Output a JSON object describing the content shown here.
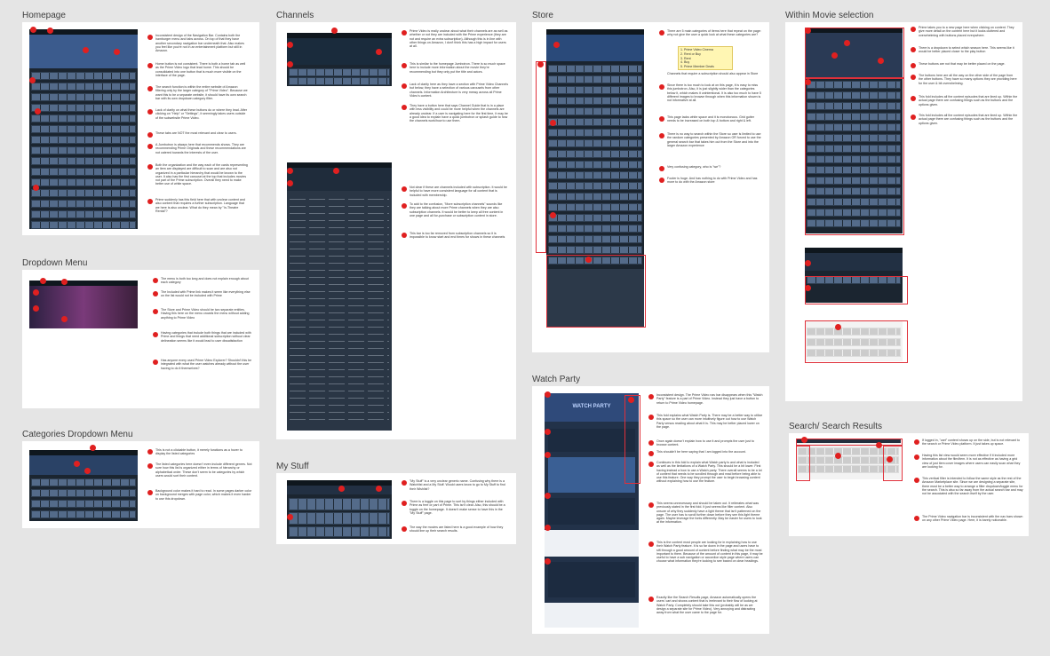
{
  "frames": {
    "homepage": {
      "title": "Homepage",
      "notes": [
        "Inconsistent design of the Navigation Bar. Contains both the hamburger menu and tabs across. On top of that they have another secondary navigation bar underneath that. Also makes you feel like you're not in an entertainment platform but still in Amazon.",
        "Home button is not consistent. There is both a home tab as well as the Prime Video logo that lead home. This should be consolidated into one button that is much more visible on the interface of the page.",
        "The search function is within the entire website of Amazon filtering only by the larger category of \"Prime Video\". Because we want this to be a separate website, it should have its own search bar with its own dropdown category filter.",
        "Lack of clarity on what these buttons do or where they lead. After clicking on \"Help\" or \"Settings\", it seemingly takes users outside of the subwebsite Prime Video.",
        "These tabs are NOT the most relevant and clear to users.",
        "A Jumbotron is always here that recommends shows. They are recommending Prime Originals and these recommendations are not catered towards the interests of the user.",
        "Both the organization and the way each of the cards representing an item are displayed are difficult to scan and are also not organized in a particular hierarchy that would be known to the user. It also has the first carousel at the top that includes movies not part of the Prime subscription. Overall they need to make better use of white space.",
        "Prime suddenly has this field here that with unclear content and also content that requires a further subscription. Language that we here is also unclear. What do they mean by \"In-Theatre Rental\"?"
      ]
    },
    "dropdown": {
      "title": "Dropdown Menu",
      "notes": [
        "The menu is both too long and does not explain enough about each category",
        "The Included with Prime link makes it seem like everything else on the list would not be included with Prime",
        "The Store and Prime Video should be two separate entities. Having this here on the menu crowds the menu without adding anything to Prime Video",
        "Having categories that include both things that are included with Prime and things that need additional subscription without clear delineation seems like it would lead to user dissatisfaction",
        "Has anyone every used Prime Video Explorer? Shouldn't this be integrated with what the user watches already without the user having to do it themselves?"
      ]
    },
    "categories": {
      "title": "Categories Dropdown Menu",
      "notes": [
        "This is not a clickable button, it merely functions as a hover to display the listed categories",
        "The listed categories here doesn't even include different genres. Not sure how this list is organized either in terms of hierarchy or alphabetical order. These don't seem to be categories by which users would sort their content.",
        "Background color makes it hard to read. In some pages darker color on background merges with page color, which makes it even harder to use this dropdown."
      ]
    },
    "channels": {
      "title": "Channels",
      "notes": [
        "Prime Video is really unclear about what their channels are as well as whether or not they are included with the Prime experience (they are not and require an extra subscription). Although this is in line with other things on Amazon, I don't think this has a high impact for users at all.",
        "This is similar to the homepage Jumbotron. There is so much space here to include more information about the movie they're recommending but they only put the title and actors.",
        "Lack of clarity here as they have a section with Prime Video Channels but below, they have a selection of various carousels from other channels. Information Architecture is very messy across all Prime Video's content.",
        "They have a button here that says Channel Guide that is in a place with less visibility and could be more helpful when the channels are already unclear. If a user is navigating here for the first time, it may be a good idea to explain have a quick jumbotron or splash guide to how the channels work/how to use them.",
        "Not clear if these are channels included with subscription. It would be helpful to have more consistent language for all content that is included with membership.",
        "To add to the confusion, \"More subscription channels\" sounds like they are talking about more Prime channels when they are also subscription channels. It would be better to keep all free content in one page and all for-purchase or subscription content in store.",
        "This bar is too far removed from subscription channels so it is impossible to know start and end times for shows in these channels"
      ]
    },
    "mystuff": {
      "title": "My Stuff",
      "notes": [
        "\"My Stuff\" is a very unclear generic name. Confusing why there is a Watchlist and a My Stuff. Would users know to go to My Stuff to find their Wishlist?",
        "There is a toggle on this page to sort by things either included with Prime as free or part of Prime. This isn't clear. Also, this should be a toggle on the homepage. It doesn't make sense to have this in the \"My Stuff\" page.",
        "The way the movies are listed here is a good example of how they should line up their search results."
      ]
    },
    "store": {
      "title": "Store",
      "notes": [
        "There are 5 main categories of items here that repeat on the page: why not give the user a quick look at what these categories are?",
        "Channels that require a subscription should also appear in Store",
        "Since there is too much to look at on this page, it is easy to miss this jumbotron. Also, it is just slightly wider than the categories below it, which makes it unintentional. It is also too much to have 5 different images to browse through when this information shown is not informative at all.",
        "This page lacks white space and it is monotonous. Grid gutter needs to be increased on both top & bottom and right & left.",
        "There is no way to search within the Store so user is limited to use the random categories presented by Amazon OR forced to use the general search bar that takes him out from the Store and into the larger Amazon experience",
        "Very confusing category, who is \"we\"?",
        "Footer is huge. And has nothing to do with Prime Video and has more to do with the Amazon store"
      ],
      "list": [
        "1. Prime Video Cinema",
        "2. Rent or Buy",
        "3. Rent",
        "4. Buy",
        "5. Prime Member Deals"
      ]
    },
    "watchparty": {
      "title": "Watch Party",
      "hero_title": "WATCH PARTY",
      "notes": [
        "Inconsistent design. The Prime Video nav bar disappears when this \"Watch Party\" feature is a part of Prime Video. Instead they just have a button to return to Prime Video homepage.",
        "This fold explains what Watch Party is. There may be a better way to utilize this space so the user can more intuitively figure out how to use Watch Party versus reading about what it is. This may be better placed lower on the page.",
        "Once again doesn't explain how to use it and prompts the user just to browse content.",
        "This shouldn't be here saying that I am logged into the account.",
        "Continues in this fold to explain what Watch party is and what is included as well as the limitations of a Watch Party. This should be a bit lower. First having instead a how to use a Watch party. There overall seems to be a lot of content that needs to be scrolled through and read before being able to use this feature. One way they prompt the user to begin browsing content without explaining how to use the feature.",
        "This seems unnecessary and should be taken out. It reiterates what was previously stated in the first fold. It just seems like filler content. Also unsure of why they suddenly have a light theme that isn't patterned on the page. The user has to scroll further down before they see this light theme again. Maybe leverage the fonts differently. May be easier for users to look at the information.",
        "This is the content most people are looking for in explaining how to use their Watch Party feature. It is so far down in the page and users have to sift through a good amount of content before finding what may be the most important to them. Because of the amount of content in this page, it may be useful to have a sub navigation or accordion style page where users can choose what information they're looking to see based on clear headings.",
        "Exactly like the Search Results page, Amazon automatically opens the users' cart and shows content that is irrelevant to their flow of looking at Watch Party. Completely should take this out (probably will be as we design a separate site for Prime Video). Very annoying and distracting away from what the user came to the page for."
      ]
    },
    "within_movie": {
      "title": "Within Movie selection",
      "notes": [
        "Prime takes you to a new page here when clicking on content. They give more detail on the content here but it looks cluttered and overwhelming with buttons placed everywhere.",
        "There is a dropdown to select which season here. This seems like it would be better placed closer to the play button",
        "These buttons are not that may be better placed on the page.",
        "The buttons here are all the way on the other side of the page from the other buttons. They have so many options they are providing here for the user & bit overwhelming.",
        "This fold includes all the content episodes that are lined up. Within the actual page there are confusing things such as the buttons and the options given.",
        "This fold includes all the content episodes that are lined up. Within the actual page there are confusing things such as the buttons and the options given."
      ]
    },
    "search": {
      "title": "Search/ Search Results",
      "notes": [
        "If logged in, \"cart\" content shows up on the side, but is not relevant to the search or Prime Video platform. It just takes up space.",
        "Having this list view would seem more effective if it included more information about the film/item. It is not as effective as having a grid view of just item cover images where users can easily scan what they are looking for.",
        "This vertical filter is intended to follow the same style as the rest of the Amazon Marketplace site. Since we are designing a separate site, there must be a better way to arrange a filter dropdown/toggle menu for the search. This is also so far away from the actual search bar and may not be associated with the search itself by the user.",
        "The Prime Video navigation bar is inconsistent with the nav bars shown on any other Prime Video page. Here, it is barely noticeable."
      ]
    }
  }
}
